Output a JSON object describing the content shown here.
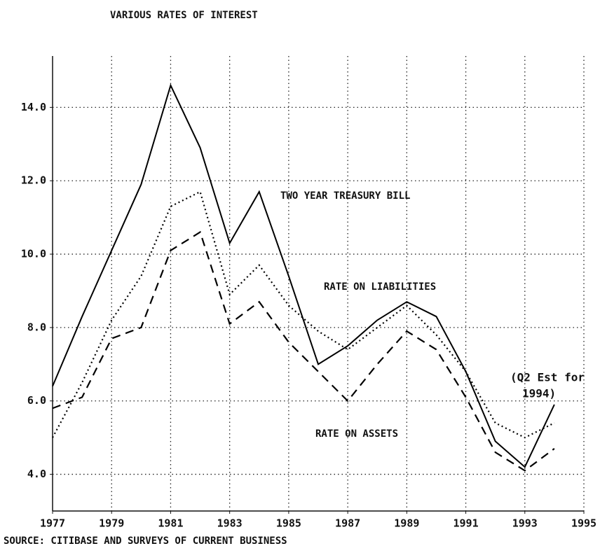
{
  "chart_data": {
    "type": "line",
    "title": "VARIOUS RATES OF INTEREST",
    "source": "SOURCE: CITIBASE AND SURVEYS OF CURRENT BUSINESS",
    "note": [
      "(Q2 Est for",
      "1994)"
    ],
    "x": [
      1977,
      1978,
      1979,
      1980,
      1981,
      1982,
      1983,
      1984,
      1985,
      1986,
      1987,
      1988,
      1989,
      1990,
      1991,
      1992,
      1993,
      1994
    ],
    "series": [
      {
        "name": "TWO YEAR TREASURY BILL",
        "color": "#000000",
        "style": "solid",
        "values": [
          6.4,
          8.3,
          10.1,
          11.9,
          14.6,
          12.9,
          10.3,
          11.7,
          9.4,
          7.0,
          7.5,
          8.2,
          8.7,
          8.3,
          6.8,
          4.9,
          4.2,
          5.9
        ]
      },
      {
        "name": "RATE ON LIABILITIES",
        "color": "#000000",
        "style": "dotted",
        "values": [
          5.0,
          6.5,
          8.2,
          9.4,
          11.3,
          11.7,
          8.9,
          9.7,
          8.6,
          7.9,
          7.4,
          8.0,
          8.6,
          7.8,
          6.8,
          5.4,
          5.0,
          5.4
        ]
      },
      {
        "name": "RATE ON ASSETS",
        "color": "#000000",
        "style": "dashed",
        "values": [
          5.8,
          6.1,
          7.7,
          8.0,
          10.1,
          10.6,
          8.1,
          8.7,
          7.6,
          6.8,
          6.0,
          7.0,
          7.9,
          7.4,
          6.1,
          4.6,
          4.1,
          4.7
        ]
      }
    ],
    "xlim": [
      1977,
      1995
    ],
    "xticks": [
      1977,
      1979,
      1981,
      1983,
      1985,
      1987,
      1989,
      1991,
      1993,
      1995
    ],
    "ylim": [
      3,
      15.4
    ],
    "yticks": [
      {
        "value": 4,
        "label": "4.0"
      },
      {
        "value": 6,
        "label": "6.0"
      },
      {
        "value": 8,
        "label": "8.0"
      },
      {
        "value": 10,
        "label": "10.0"
      },
      {
        "value": 12,
        "label": "12.0"
      },
      {
        "value": 14,
        "label": "14.0"
      }
    ],
    "grid": true
  }
}
